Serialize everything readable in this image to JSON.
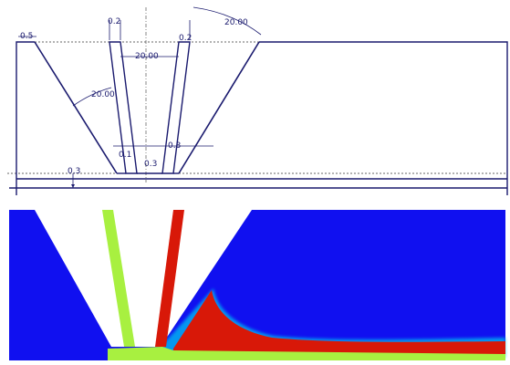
{
  "sketch": {
    "dimensions": {
      "left_top_offset": "0.5",
      "left_angle": "20.00",
      "slit_width_top": "0.2",
      "slit_spacing": "20.00",
      "right_slit_width": "0.2",
      "right_angle": "20.00",
      "left_slit_bottom": "0.1",
      "center_gap": "0.3",
      "right_slit_bottom": "0.3",
      "base_height": "0.3"
    }
  },
  "simulation": {
    "colors": {
      "background_fluid": "#1010f0",
      "melt_region": "#d81808",
      "liquid_stream": "#a8f040",
      "outline": "#1a1a6e"
    }
  }
}
